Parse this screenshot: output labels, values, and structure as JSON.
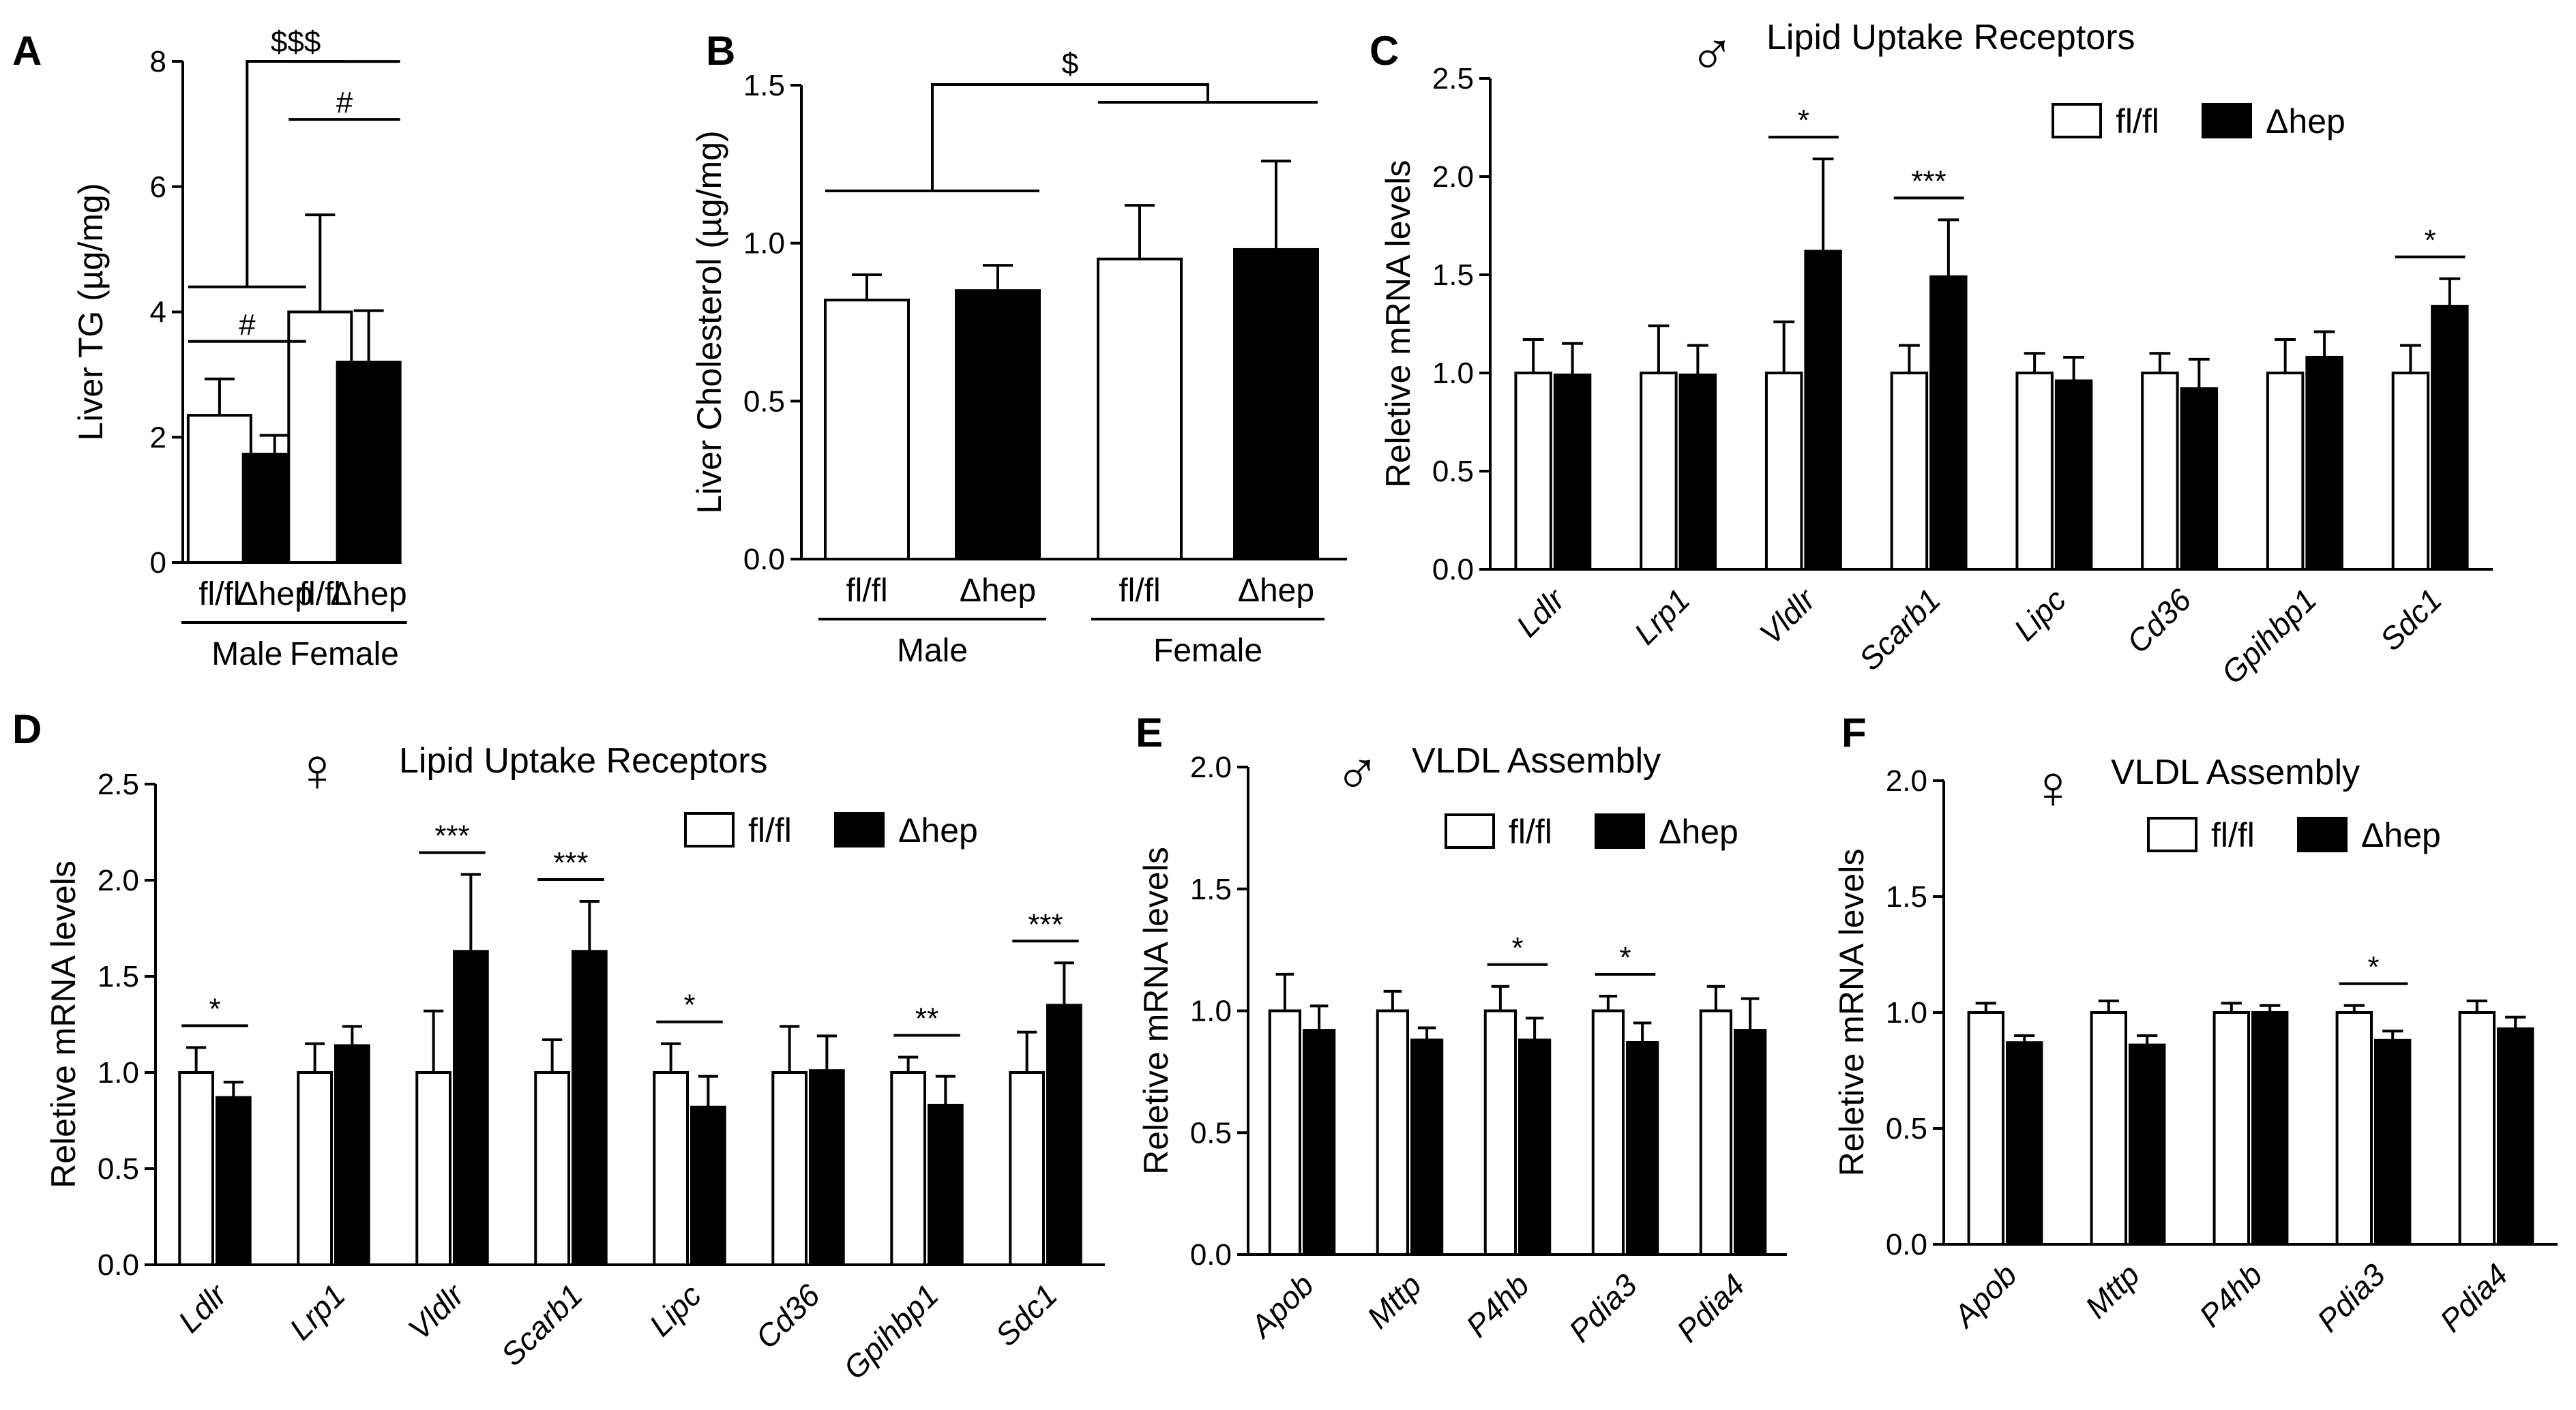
{
  "colors": {
    "open": "#ffffff",
    "filled": "#000000",
    "stroke": "#000000"
  },
  "chart_data": [
    {
      "id": "A",
      "type": "bar",
      "panel": "A",
      "ylabel": "Liver TG (µg/mg)",
      "ylim": [
        0,
        8
      ],
      "ticks": [
        0,
        2,
        4,
        6,
        8
      ],
      "categories": [
        "fl/fl",
        "Δhep",
        "fl/fl",
        "Δhep"
      ],
      "groups": [
        {
          "label": "Male"
        },
        {
          "label": "Female"
        }
      ],
      "values": [
        2.35,
        1.73,
        4.0,
        3.2
      ],
      "errors": [
        0.58,
        0.3,
        1.55,
        0.82
      ],
      "fills": [
        "open",
        "filled",
        "open",
        "filled"
      ],
      "annotations": [
        {
          "text": "#",
          "between": [
            0,
            1
          ]
        },
        {
          "text": "#",
          "between": [
            2,
            3
          ]
        },
        {
          "text": "$$$",
          "between": [
            "Male",
            "Female"
          ]
        }
      ]
    },
    {
      "id": "B",
      "type": "bar",
      "panel": "B",
      "ylabel": "Liver Cholesterol (µg/mg)",
      "ylim": [
        0,
        1.5
      ],
      "ticks": [
        "0.0",
        "0.5",
        "1.0",
        "1.5"
      ],
      "categories": [
        "fl/fl",
        "Δhep",
        "fl/fl",
        "Δhep"
      ],
      "groups": [
        {
          "label": "Male"
        },
        {
          "label": "Female"
        }
      ],
      "values": [
        0.82,
        0.85,
        0.95,
        0.98
      ],
      "errors": [
        0.08,
        0.08,
        0.17,
        0.28
      ],
      "fills": [
        "open",
        "filled",
        "open",
        "filled"
      ],
      "annotations": [
        {
          "text": "$",
          "between": [
            "Male",
            "Female"
          ]
        }
      ]
    },
    {
      "id": "C",
      "type": "bar",
      "panel": "C",
      "title": "Lipid Uptake Receptors",
      "sex_symbol": "♂",
      "ylabel": "Reletive mRNA levels",
      "ylim": [
        0,
        2.5
      ],
      "ticks": [
        "0.0",
        "0.5",
        "1.0",
        "1.5",
        "2.0",
        "2.5"
      ],
      "categories": [
        "Ldlr",
        "Lrp1",
        "Vldlr",
        "Scarb1",
        "Lipc",
        "Cd36",
        "Gpihbp1",
        "Sdc1"
      ],
      "legend": [
        "fl/fl",
        "Δhep"
      ],
      "series": [
        {
          "name": "fl/fl",
          "values": [
            1.0,
            1.0,
            1.0,
            1.0,
            1.0,
            1.0,
            1.0,
            1.0
          ],
          "errors": [
            0.17,
            0.24,
            0.26,
            0.14,
            0.1,
            0.1,
            0.17,
            0.14
          ]
        },
        {
          "name": "Δhep",
          "values": [
            0.99,
            0.99,
            1.62,
            1.49,
            0.96,
            0.92,
            1.08,
            1.34
          ],
          "errors": [
            0.16,
            0.15,
            0.47,
            0.29,
            0.12,
            0.15,
            0.13,
            0.14
          ]
        }
      ],
      "significance": [
        {
          "category": "Vldlr",
          "text": "*"
        },
        {
          "category": "Scarb1",
          "text": "***"
        },
        {
          "category": "Sdc1",
          "text": "*"
        }
      ]
    },
    {
      "id": "D",
      "type": "bar",
      "panel": "D",
      "title": "Lipid Uptake Receptors",
      "sex_symbol": "♀",
      "ylabel": "Reletive mRNA levels",
      "ylim": [
        0,
        2.5
      ],
      "ticks": [
        "0.0",
        "0.5",
        "1.0",
        "1.5",
        "2.0",
        "2.5"
      ],
      "categories": [
        "Ldlr",
        "Lrp1",
        "Vldlr",
        "Scarb1",
        "Lipc",
        "Cd36",
        "Gpihbp1",
        "Sdc1"
      ],
      "legend": [
        "fl/fl",
        "Δhep"
      ],
      "series": [
        {
          "name": "fl/fl",
          "values": [
            1.0,
            1.0,
            1.0,
            1.0,
            1.0,
            1.0,
            1.0,
            1.0
          ],
          "errors": [
            0.13,
            0.15,
            0.32,
            0.17,
            0.15,
            0.24,
            0.08,
            0.21
          ]
        },
        {
          "name": "Δhep",
          "values": [
            0.87,
            1.14,
            1.63,
            1.63,
            0.82,
            1.01,
            0.83,
            1.35
          ],
          "errors": [
            0.08,
            0.1,
            0.4,
            0.26,
            0.16,
            0.18,
            0.15,
            0.22
          ]
        }
      ],
      "significance": [
        {
          "category": "Ldlr",
          "text": "*"
        },
        {
          "category": "Vldlr",
          "text": "***"
        },
        {
          "category": "Scarb1",
          "text": "***"
        },
        {
          "category": "Lipc",
          "text": "*"
        },
        {
          "category": "Gpihbp1",
          "text": "**"
        },
        {
          "category": "Sdc1",
          "text": "***"
        }
      ]
    },
    {
      "id": "E",
      "type": "bar",
      "panel": "E",
      "title": "VLDL Assembly",
      "sex_symbol": "♂",
      "ylabel": "Reletive mRNA levels",
      "ylim": [
        0,
        2.0
      ],
      "ticks": [
        "0.0",
        "0.5",
        "1.0",
        "1.5",
        "2.0"
      ],
      "categories": [
        "Apob",
        "Mttp",
        "P4hb",
        "Pdia3",
        "Pdia4"
      ],
      "legend": [
        "fl/fl",
        "Δhep"
      ],
      "series": [
        {
          "name": "fl/fl",
          "values": [
            1.0,
            1.0,
            1.0,
            1.0,
            1.0
          ],
          "errors": [
            0.15,
            0.08,
            0.1,
            0.06,
            0.1
          ]
        },
        {
          "name": "Δhep",
          "values": [
            0.92,
            0.88,
            0.88,
            0.87,
            0.92
          ],
          "errors": [
            0.1,
            0.05,
            0.09,
            0.08,
            0.13
          ]
        }
      ],
      "significance": [
        {
          "category": "P4hb",
          "text": "*"
        },
        {
          "category": "Pdia3",
          "text": "*"
        }
      ]
    },
    {
      "id": "F",
      "type": "bar",
      "panel": "F",
      "title": "VLDL Assembly",
      "sex_symbol": "♀",
      "ylabel": "Reletive mRNA levels",
      "ylim": [
        0,
        2.0
      ],
      "ticks": [
        "0.0",
        "0.5",
        "1.0",
        "1.5",
        "2.0"
      ],
      "categories": [
        "Apob",
        "Mttp",
        "P4hb",
        "Pdia3",
        "Pdia4"
      ],
      "legend": [
        "fl/fl",
        "Δhep"
      ],
      "series": [
        {
          "name": "fl/fl",
          "values": [
            1.0,
            1.0,
            1.0,
            1.0,
            1.0
          ],
          "errors": [
            0.04,
            0.05,
            0.04,
            0.03,
            0.05
          ]
        },
        {
          "name": "Δhep",
          "values": [
            0.87,
            0.86,
            1.0,
            0.88,
            0.93
          ],
          "errors": [
            0.03,
            0.04,
            0.03,
            0.04,
            0.05
          ]
        }
      ],
      "significance": [
        {
          "category": "Pdia3",
          "text": "*"
        }
      ]
    }
  ]
}
